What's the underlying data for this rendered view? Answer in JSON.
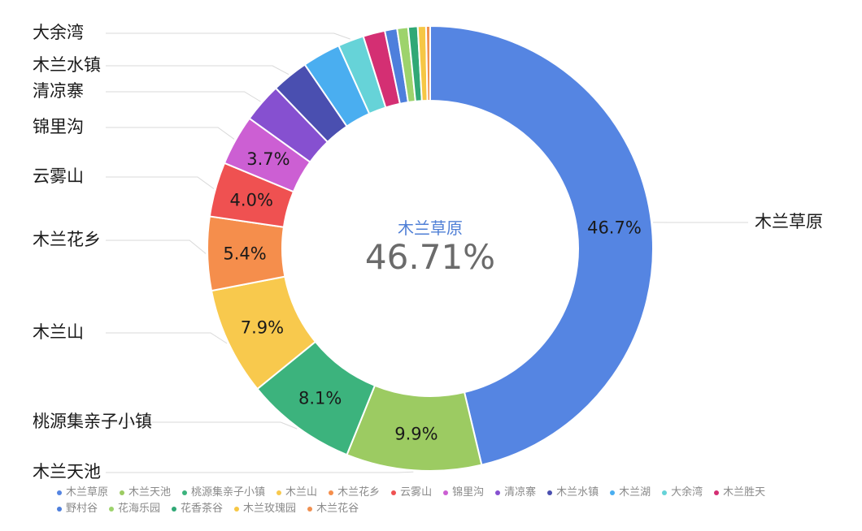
{
  "chart_data": {
    "type": "pie",
    "variant": "donut",
    "categories": [
      "木兰草原",
      "木兰天池",
      "桃源集亲子小镇",
      "木兰山",
      "木兰花乡",
      "云雾山",
      "锦里沟",
      "清凉寨",
      "木兰水镇",
      "木兰湖",
      "大余湾",
      "木兰胜天",
      "野村谷",
      "花海乐园",
      "花香茶谷",
      "木兰玫瑰园",
      "木兰花谷"
    ],
    "values": [
      46.71,
      9.9,
      8.1,
      7.9,
      5.4,
      4.0,
      3.7,
      2.9,
      2.7,
      2.8,
      1.9,
      1.6,
      0.9,
      0.8,
      0.7,
      0.6,
      0.3
    ],
    "slice_labels": [
      "46.7%",
      "9.9%",
      "8.1%",
      "7.9%",
      "5.4%",
      "4.0%",
      "3.7%",
      "",
      "",
      "",
      "",
      "",
      "",
      "",
      "",
      "",
      ""
    ],
    "outside_labels": [
      "木兰草原",
      "木兰天池",
      "桃源集亲子小镇",
      "木兰山",
      "木兰花乡",
      "云雾山",
      "锦里沟",
      "清凉寨",
      "木兰水镇",
      "",
      "大余湾",
      "",
      "",
      "",
      "",
      "",
      ""
    ],
    "colors": [
      "#5585e2",
      "#9ccb62",
      "#3cb37d",
      "#f8c94d",
      "#f58e4c",
      "#ef5151",
      "#cc5fd3",
      "#8650d0",
      "#4a4fb0",
      "#4aaef0",
      "#66d3d8",
      "#d42f73",
      "#4e7fdc",
      "#9dd36c",
      "#30a876",
      "#f6c745",
      "#f09050"
    ],
    "center": {
      "name": "木兰草原",
      "value": "46.71%"
    },
    "legend_position": "bottom"
  }
}
